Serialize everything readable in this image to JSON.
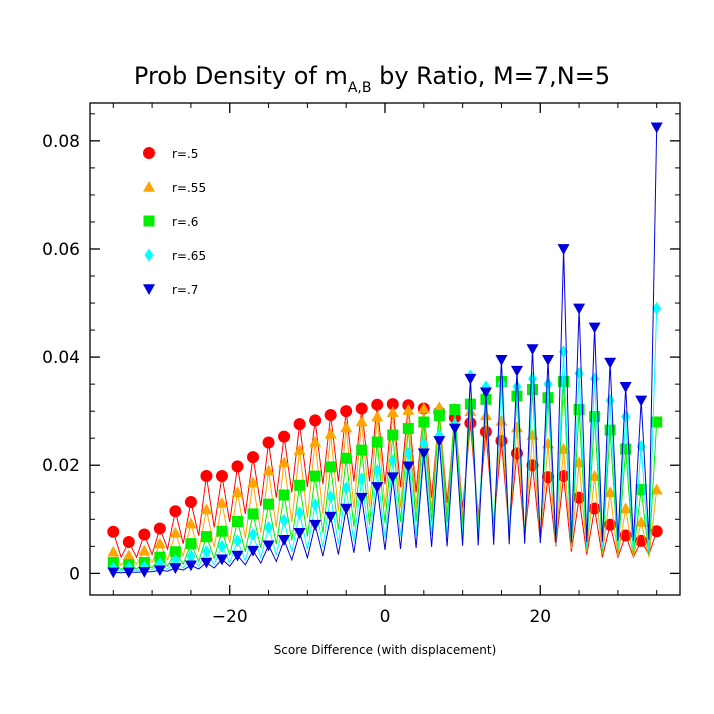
{
  "chart_data": {
    "type": "line",
    "title": {
      "prefix": "Prob Density of m",
      "subscript": "A,B",
      "suffix": " by Ratio, M=7,N=5"
    },
    "xlabel": "Score Difference (with displacement)",
    "ylabel": "",
    "xlim": [
      -38,
      38
    ],
    "ylim": [
      -0.004,
      0.087
    ],
    "xticks": [
      -20,
      0,
      20
    ],
    "xtick_labels": [
      "−20",
      "0",
      "20"
    ],
    "yticks": [
      0,
      0.02,
      0.04,
      0.06,
      0.08
    ],
    "ytick_labels": [
      "0",
      "0.02",
      "0.04",
      "0.06",
      "0.08"
    ],
    "legend_position": "top-left",
    "series": [
      {
        "name": "r=.5",
        "color": "#ff0000",
        "marker": "circle",
        "x": [
          -35,
          -33,
          -31,
          -29,
          -27,
          -25,
          -23,
          -21,
          -19,
          -17,
          -15,
          -13,
          -11,
          -9,
          -7,
          -5,
          -3,
          -1,
          1,
          3,
          5,
          7,
          9,
          11,
          13,
          15,
          17,
          19,
          21,
          23,
          25,
          27,
          29,
          31,
          33,
          35
        ],
        "values": [
          0.0077,
          0.0058,
          0.0072,
          0.0083,
          0.0115,
          0.0132,
          0.018,
          0.018,
          0.0198,
          0.0215,
          0.0242,
          0.0253,
          0.0276,
          0.0283,
          0.0293,
          0.03,
          0.0305,
          0.0312,
          0.0313,
          0.0311,
          0.0305,
          0.0298,
          0.0288,
          0.0278,
          0.0262,
          0.0245,
          0.0222,
          0.02,
          0.0178,
          0.018,
          0.014,
          0.012,
          0.009,
          0.007,
          0.006,
          0.0078
        ],
        "troughs": [
          0.003,
          0.003,
          0.0035,
          0.0045,
          0.0055,
          0.007,
          0.0085,
          0.0095,
          0.011,
          0.0125,
          0.014,
          0.015,
          0.016,
          0.0165,
          0.017,
          0.017,
          0.017,
          0.0165,
          0.016,
          0.015,
          0.014,
          0.013,
          0.012,
          0.0105,
          0.009,
          0.008,
          0.007,
          0.006,
          0.005,
          0.004,
          0.0035,
          0.003,
          0.003,
          0.003,
          0.0035
        ]
      },
      {
        "name": "r=.55",
        "color": "#ffa500",
        "marker": "triangle-up",
        "x": [
          -35,
          -33,
          -31,
          -29,
          -27,
          -25,
          -23,
          -21,
          -19,
          -17,
          -15,
          -13,
          -11,
          -9,
          -7,
          -5,
          -3,
          -1,
          1,
          3,
          5,
          7,
          9,
          11,
          13,
          15,
          17,
          19,
          21,
          23,
          25,
          27,
          29,
          31,
          33,
          35
        ],
        "values": [
          0.004,
          0.0033,
          0.0042,
          0.0055,
          0.0075,
          0.0092,
          0.0118,
          0.013,
          0.015,
          0.0168,
          0.019,
          0.0205,
          0.0228,
          0.0243,
          0.0258,
          0.027,
          0.0281,
          0.029,
          0.0298,
          0.0302,
          0.0305,
          0.0307,
          0.0305,
          0.03,
          0.0292,
          0.0282,
          0.027,
          0.0256,
          0.024,
          0.023,
          0.0205,
          0.018,
          0.015,
          0.012,
          0.0095,
          0.0155
        ],
        "troughs": [
          0.0015,
          0.0017,
          0.002,
          0.0025,
          0.0032,
          0.004,
          0.0048,
          0.0056,
          0.0065,
          0.0075,
          0.0085,
          0.0095,
          0.0103,
          0.011,
          0.0115,
          0.012,
          0.0122,
          0.0123,
          0.0122,
          0.012,
          0.0116,
          0.011,
          0.0103,
          0.0095,
          0.0086,
          0.0077,
          0.0068,
          0.006,
          0.0052,
          0.0045,
          0.004,
          0.0035,
          0.0032,
          0.003,
          0.003
        ]
      },
      {
        "name": "r=.6",
        "color": "#00ee00",
        "marker": "square",
        "x": [
          -35,
          -33,
          -31,
          -29,
          -27,
          -25,
          -23,
          -21,
          -19,
          -17,
          -15,
          -13,
          -11,
          -9,
          -7,
          -5,
          -3,
          -1,
          1,
          3,
          5,
          7,
          9,
          11,
          13,
          15,
          17,
          19,
          21,
          23,
          25,
          27,
          29,
          31,
          33,
          35
        ],
        "values": [
          0.002,
          0.0016,
          0.002,
          0.003,
          0.004,
          0.0055,
          0.0068,
          0.0078,
          0.0096,
          0.011,
          0.0128,
          0.0145,
          0.0163,
          0.018,
          0.0197,
          0.0213,
          0.0228,
          0.0243,
          0.0256,
          0.0268,
          0.028,
          0.0292,
          0.0303,
          0.0313,
          0.0322,
          0.0355,
          0.0328,
          0.034,
          0.0325,
          0.0355,
          0.0303,
          0.029,
          0.0265,
          0.023,
          0.0155,
          0.028
        ],
        "troughs": [
          0.0007,
          0.0008,
          0.001,
          0.0013,
          0.0017,
          0.0022,
          0.0028,
          0.0034,
          0.004,
          0.0047,
          0.0054,
          0.0061,
          0.0068,
          0.0075,
          0.0081,
          0.0086,
          0.009,
          0.0093,
          0.0095,
          0.0096,
          0.0096,
          0.0094,
          0.009,
          0.0086,
          0.008,
          0.0075,
          0.0069,
          0.0063,
          0.0057,
          0.0051,
          0.0046,
          0.0042,
          0.0038,
          0.0036,
          0.0035
        ]
      },
      {
        "name": "r=.65",
        "color": "#00ffff",
        "marker": "diamond",
        "x": [
          -35,
          -33,
          -31,
          -29,
          -27,
          -25,
          -23,
          -21,
          -19,
          -17,
          -15,
          -13,
          -11,
          -9,
          -7,
          -5,
          -3,
          -1,
          1,
          3,
          5,
          7,
          9,
          11,
          13,
          15,
          17,
          19,
          21,
          23,
          25,
          27,
          29,
          31,
          33,
          35
        ],
        "values": [
          0.001,
          0.001,
          0.0012,
          0.0018,
          0.0024,
          0.0032,
          0.004,
          0.005,
          0.006,
          0.0072,
          0.0085,
          0.0098,
          0.0112,
          0.0127,
          0.0142,
          0.0158,
          0.0175,
          0.019,
          0.0208,
          0.0222,
          0.024,
          0.0255,
          0.0275,
          0.0365,
          0.0345,
          0.035,
          0.0345,
          0.036,
          0.035,
          0.041,
          0.037,
          0.036,
          0.032,
          0.029,
          0.0235,
          0.049
        ],
        "troughs": [
          0.0004,
          0.0005,
          0.0006,
          0.0008,
          0.001,
          0.0013,
          0.0016,
          0.002,
          0.0024,
          0.0029,
          0.0034,
          0.0039,
          0.0044,
          0.0049,
          0.0054,
          0.0058,
          0.0062,
          0.0065,
          0.0068,
          0.007,
          0.0071,
          0.0071,
          0.007,
          0.0068,
          0.0066,
          0.0063,
          0.006,
          0.0057,
          0.0054,
          0.0051,
          0.0048,
          0.0046,
          0.0044,
          0.0042,
          0.0041
        ]
      },
      {
        "name": "r=.7",
        "color": "#0000dd",
        "marker": "triangle-down",
        "x": [
          -35,
          -33,
          -31,
          -29,
          -27,
          -25,
          -23,
          -21,
          -19,
          -17,
          -15,
          -13,
          -11,
          -9,
          -7,
          -5,
          -3,
          -1,
          1,
          3,
          5,
          7,
          9,
          11,
          13,
          15,
          17,
          19,
          21,
          23,
          25,
          27,
          29,
          31,
          33,
          35
        ],
        "values": [
          0.0002,
          0.0002,
          0.0003,
          0.0006,
          0.001,
          0.0015,
          0.002,
          0.0026,
          0.0033,
          0.0042,
          0.0052,
          0.0062,
          0.0075,
          0.009,
          0.0105,
          0.012,
          0.014,
          0.016,
          0.0178,
          0.0198,
          0.0222,
          0.0245,
          0.0268,
          0.036,
          0.0335,
          0.0395,
          0.0375,
          0.0415,
          0.0395,
          0.06,
          0.049,
          0.0455,
          0.039,
          0.0345,
          0.032,
          0.0825
        ],
        "troughs": [
          0.0001,
          0.0002,
          0.0003,
          0.0004,
          0.0006,
          0.0008,
          0.001,
          0.0013,
          0.0016,
          0.0019,
          0.0022,
          0.0025,
          0.0029,
          0.0032,
          0.0035,
          0.0038,
          0.004,
          0.0043,
          0.0045,
          0.0047,
          0.0049,
          0.005,
          0.0051,
          0.0052,
          0.0053,
          0.0054,
          0.0055,
          0.0056,
          0.0057,
          0.0057,
          0.0058,
          0.0059,
          0.006,
          0.006,
          0.0062
        ]
      }
    ]
  }
}
